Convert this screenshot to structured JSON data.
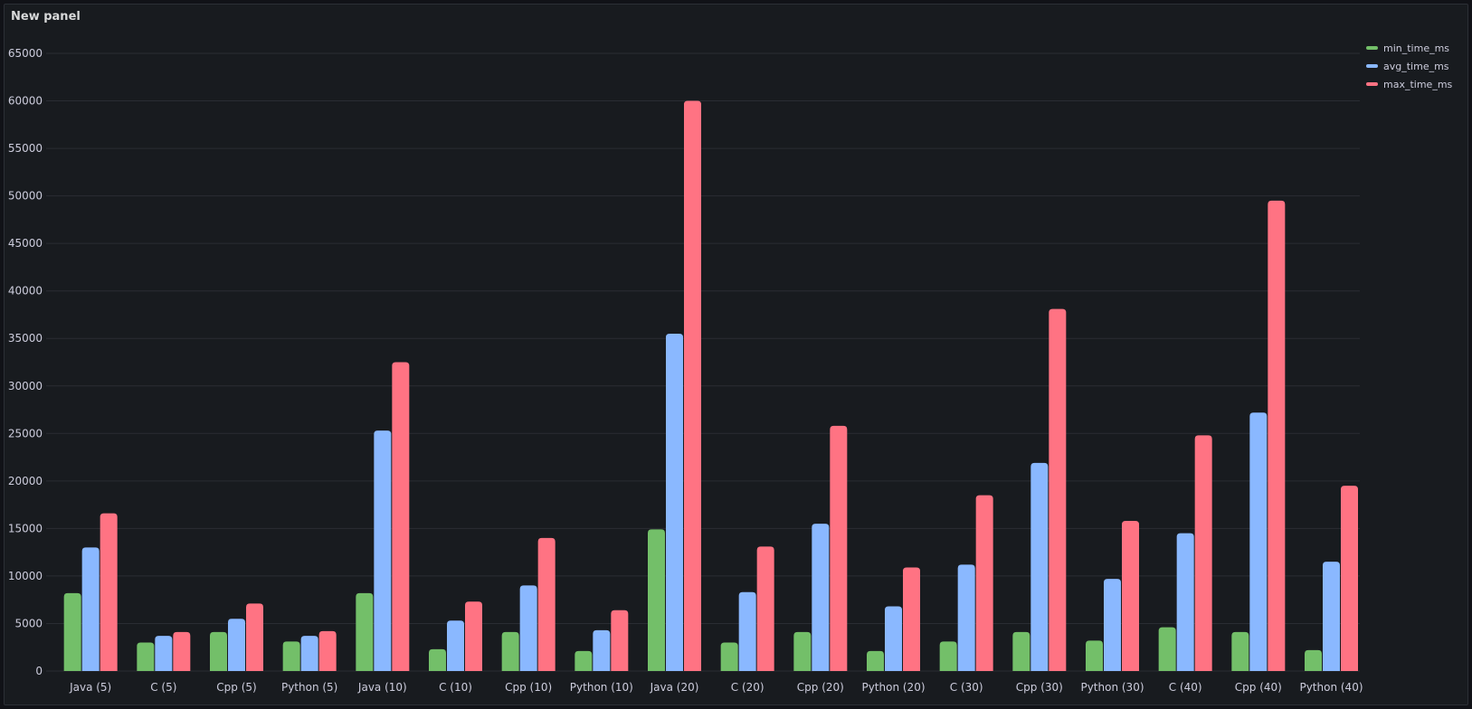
{
  "panel": {
    "title": "New panel"
  },
  "colors": {
    "background": "#181b1f",
    "grid": "#2a2d33",
    "text": "#ccccdc"
  },
  "legend": [
    {
      "name": "min_time_ms",
      "color": "#73bf69"
    },
    {
      "name": "avg_time_ms",
      "color": "#8ab8ff"
    },
    {
      "name": "max_time_ms",
      "color": "#ff7383"
    }
  ],
  "chart_data": {
    "type": "bar",
    "title": "New panel",
    "xlabel": "",
    "ylabel": "",
    "ylim": [
      0,
      65000
    ],
    "yticks": [
      0,
      5000,
      10000,
      15000,
      20000,
      25000,
      30000,
      35000,
      40000,
      45000,
      50000,
      55000,
      60000,
      65000
    ],
    "grid": true,
    "legend_position": "top-right",
    "categories": [
      "Java (5)",
      "C (5)",
      "Cpp (5)",
      "Python (5)",
      "Java (10)",
      "C (10)",
      "Cpp (10)",
      "Python (10)",
      "Java (20)",
      "C (20)",
      "Cpp (20)",
      "Python (20)",
      "C (30)",
      "Cpp (30)",
      "Python (30)",
      "C (40)",
      "Cpp (40)",
      "Python (40)"
    ],
    "series": [
      {
        "name": "min_time_ms",
        "color": "#73bf69",
        "values": [
          8200,
          3000,
          4100,
          3100,
          8200,
          2300,
          4100,
          2100,
          14900,
          3000,
          4100,
          2100,
          3100,
          4100,
          3200,
          4600,
          4100,
          2200
        ]
      },
      {
        "name": "avg_time_ms",
        "color": "#8ab8ff",
        "values": [
          13000,
          3700,
          5500,
          3700,
          25300,
          5300,
          9000,
          4300,
          35500,
          8300,
          15500,
          6800,
          11200,
          21900,
          9700,
          14500,
          27200,
          11500
        ]
      },
      {
        "name": "max_time_ms",
        "color": "#ff7383",
        "values": [
          16600,
          4100,
          7100,
          4200,
          32500,
          7300,
          14000,
          6400,
          60000,
          13100,
          25800,
          10900,
          18500,
          38100,
          15800,
          24800,
          49500,
          19500
        ]
      }
    ]
  }
}
